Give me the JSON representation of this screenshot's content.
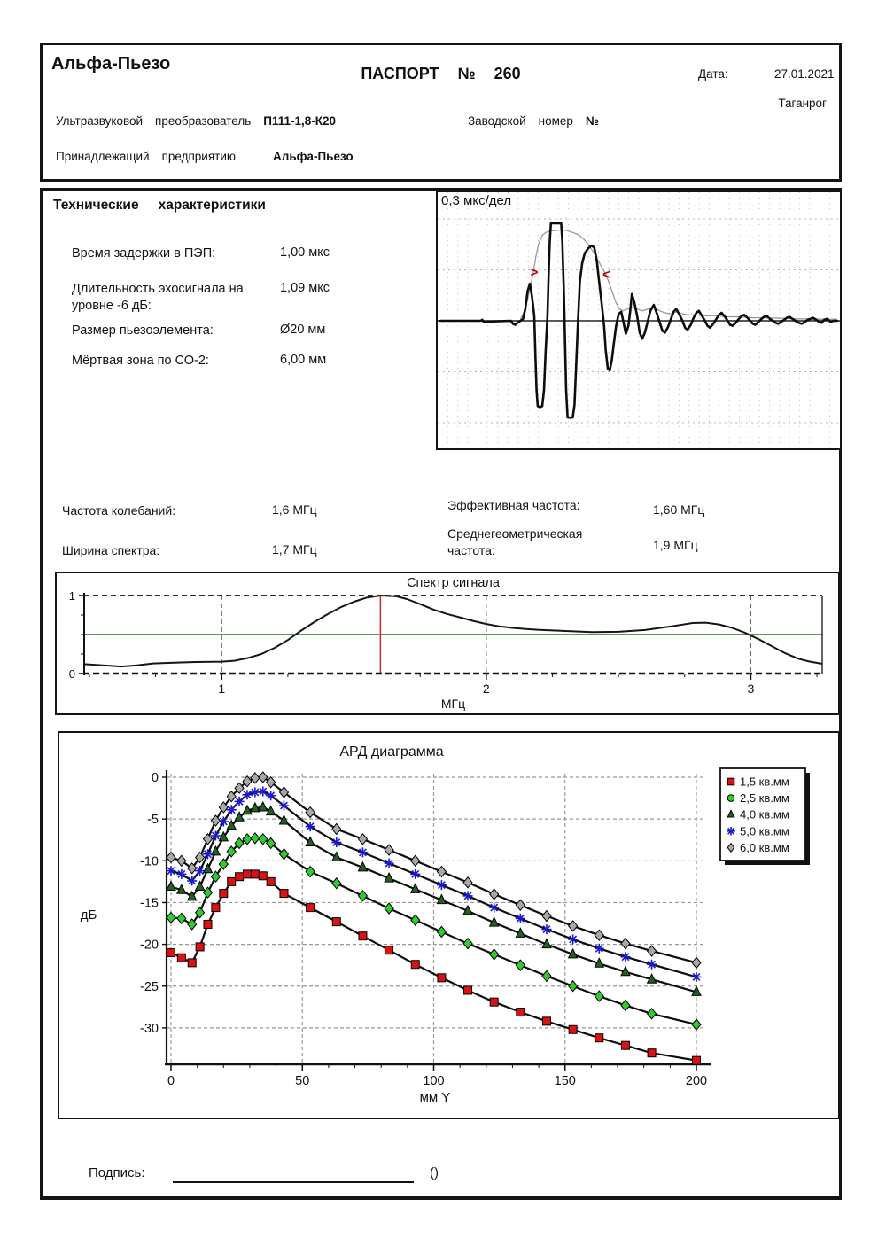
{
  "header": {
    "company": "Альфа-Пьезо",
    "title": "ПАСПОРТ № 260",
    "date_label": "Дата:",
    "date_value": "27.01.2021",
    "city": "Таганрог",
    "line2a": "Ультразвуковой",
    "line2b": "преобразователь",
    "model": "П111-1,8-К20",
    "line2c": "Заводской",
    "line2d": "номер",
    "line2e": "№",
    "line3a": "Принадлежащий",
    "line3b": "предприятию",
    "owner": "Альфа-Пьезо"
  },
  "tech": {
    "title_a": "Технические",
    "title_b": "характеристики",
    "rows": [
      {
        "label": "Время задержки в ПЭП:",
        "value": "1,00 мкс"
      },
      {
        "label": "Длительность эхосигнала на уровне -6 дБ:",
        "value": "1,09 мкс"
      },
      {
        "label": "Размер пьезоэлемента:",
        "value": "Ø20 мм"
      },
      {
        "label": "Мёртвая зона по СО-2:",
        "value": "6,00 мм"
      }
    ]
  },
  "freqs": {
    "left": [
      {
        "label": "Частота колебаний:",
        "value": "1,6 МГц"
      },
      {
        "label": "Ширина спектра:",
        "value": "1,7 МГц"
      }
    ],
    "right": [
      {
        "label": "Эффективная частота:",
        "value": "1,60 МГц"
      },
      {
        "label": "Среднегеометрическая частота:",
        "value": "1,9 МГц"
      }
    ]
  },
  "signature": {
    "label": "Подпись:",
    "paren": "()"
  },
  "colors": {
    "line_black": "#0d0d0d",
    "envelope_gray": "#9a9a9a",
    "grid_gray": "#999999",
    "grid_light": "#bfbfbf",
    "threshold_green": "#1e7a1e",
    "peak_red": "#c03030",
    "marker_arrow_red": "#c00000"
  },
  "chart_data": [
    {
      "type": "line",
      "name": "echo-waveform",
      "scale_label": "0,3 мкс/дел",
      "x_unit": "div",
      "time_span_div": 14,
      "clip_amp": 0.983,
      "markers": [
        {
          "glyph": ">",
          "x_div": 3.36,
          "amp": 0.49
        },
        {
          "glyph": "<",
          "x_div": 5.87,
          "amp": 0.47
        }
      ],
      "points": [
        [
          0.1,
          0
        ],
        [
          1.5,
          0
        ],
        [
          1.55,
          0.01
        ],
        [
          1.6,
          -0.01
        ],
        [
          2.55,
          0
        ],
        [
          2.62,
          -0.03
        ],
        [
          2.7,
          -0.04
        ],
        [
          2.78,
          -0.02
        ],
        [
          2.88,
          0
        ],
        [
          2.97,
          0.02
        ],
        [
          3.05,
          0.12
        ],
        [
          3.13,
          0.3
        ],
        [
          3.21,
          0.374
        ],
        [
          3.28,
          0.25
        ],
        [
          3.36,
          0.05
        ],
        [
          3.4,
          -0.35
        ],
        [
          3.44,
          -0.7
        ],
        [
          3.48,
          -0.86
        ],
        [
          3.56,
          -0.87
        ],
        [
          3.64,
          -0.86
        ],
        [
          3.7,
          -0.7
        ],
        [
          3.76,
          -0.3
        ],
        [
          3.82,
          0.05
        ],
        [
          3.86,
          0.45
        ],
        [
          3.9,
          0.8
        ],
        [
          3.94,
          0.983
        ],
        [
          4.08,
          0.983
        ],
        [
          4.22,
          0.983
        ],
        [
          4.3,
          0.983
        ],
        [
          4.34,
          0.8
        ],
        [
          4.39,
          0.3
        ],
        [
          4.43,
          -0.2
        ],
        [
          4.47,
          -0.7
        ],
        [
          4.52,
          -0.974
        ],
        [
          4.6,
          -0.975
        ],
        [
          4.7,
          -0.974
        ],
        [
          4.76,
          -0.85
        ],
        [
          4.82,
          -0.45
        ],
        [
          4.88,
          -0.02
        ],
        [
          4.95,
          0.4
        ],
        [
          5.03,
          0.58
        ],
        [
          5.12,
          0.68
        ],
        [
          5.24,
          0.73
        ],
        [
          5.35,
          0.757
        ],
        [
          5.45,
          0.74
        ],
        [
          5.54,
          0.6
        ],
        [
          5.61,
          0.42
        ],
        [
          5.7,
          0.2
        ],
        [
          5.79,
          -0.05
        ],
        [
          5.85,
          -0.3
        ],
        [
          5.92,
          -0.48
        ],
        [
          5.99,
          -0.5
        ],
        [
          6.06,
          -0.4
        ],
        [
          6.12,
          -0.25
        ],
        [
          6.21,
          -0.05
        ],
        [
          6.3,
          0.07
        ],
        [
          6.39,
          0.09
        ],
        [
          6.47,
          -0.02
        ],
        [
          6.55,
          -0.13
        ],
        [
          6.64,
          -0.05
        ],
        [
          6.7,
          0.1
        ],
        [
          6.76,
          0.27
        ],
        [
          6.85,
          0.18
        ],
        [
          6.94,
          0.05
        ],
        [
          7.03,
          -0.12
        ],
        [
          7.12,
          -0.18
        ],
        [
          7.21,
          -0.12
        ],
        [
          7.3,
          -0.02
        ],
        [
          7.4,
          0.1
        ],
        [
          7.52,
          0.16
        ],
        [
          7.62,
          0.08
        ],
        [
          7.73,
          -0.02
        ],
        [
          7.82,
          -0.1
        ],
        [
          7.91,
          -0.12
        ],
        [
          8.02,
          -0.06
        ],
        [
          8.12,
          0.02
        ],
        [
          8.21,
          0.09
        ],
        [
          8.3,
          0.12
        ],
        [
          8.42,
          0.06
        ],
        [
          8.52,
          0
        ],
        [
          8.61,
          -0.07
        ],
        [
          8.7,
          -0.09
        ],
        [
          8.81,
          -0.04
        ],
        [
          8.91,
          0.03
        ],
        [
          9.0,
          0.08
        ],
        [
          9.09,
          0.1
        ],
        [
          9.2,
          0.05
        ],
        [
          9.3,
          0
        ],
        [
          9.39,
          -0.05
        ],
        [
          9.48,
          -0.07
        ],
        [
          9.59,
          -0.03
        ],
        [
          9.7,
          0.02
        ],
        [
          9.79,
          0.06
        ],
        [
          9.88,
          0.08
        ],
        [
          10.0,
          0.04
        ],
        [
          10.09,
          0
        ],
        [
          10.18,
          -0.04
        ],
        [
          10.27,
          -0.05
        ],
        [
          10.38,
          -0.02
        ],
        [
          10.48,
          0.02
        ],
        [
          10.58,
          0.05
        ],
        [
          10.67,
          0.06
        ],
        [
          10.78,
          0.03
        ],
        [
          10.88,
          0
        ],
        [
          10.97,
          -0.03
        ],
        [
          11.06,
          -0.04
        ],
        [
          11.17,
          -0.01
        ],
        [
          11.27,
          0.02
        ],
        [
          11.36,
          0.04
        ],
        [
          11.45,
          0.05
        ],
        [
          11.56,
          0.02
        ],
        [
          11.67,
          0
        ],
        [
          11.76,
          -0.02
        ],
        [
          11.85,
          -0.03
        ],
        [
          11.96,
          -0.01
        ],
        [
          12.06,
          0.01
        ],
        [
          12.15,
          0.03
        ],
        [
          12.24,
          0.04
        ],
        [
          12.35,
          0.02
        ],
        [
          12.45,
          0
        ],
        [
          12.56,
          -0.02
        ],
        [
          12.67,
          -0.03
        ],
        [
          12.78,
          -0.01
        ],
        [
          12.88,
          0.01
        ],
        [
          12.97,
          0.02
        ],
        [
          13.06,
          0.03
        ],
        [
          13.18,
          0.01
        ],
        [
          13.27,
          -0.01
        ],
        [
          13.36,
          -0.02
        ],
        [
          13.45,
          0.01
        ],
        [
          13.56,
          0.02
        ],
        [
          13.67,
          -0.01
        ],
        [
          13.78,
          0
        ],
        [
          13.9,
          0
        ]
      ],
      "envelope": [
        [
          2.88,
          0.02
        ],
        [
          3.0,
          0.08
        ],
        [
          3.1,
          0.18
        ],
        [
          3.21,
          0.32
        ],
        [
          3.33,
          0.49
        ],
        [
          3.42,
          0.65
        ],
        [
          3.52,
          0.78
        ],
        [
          3.64,
          0.86
        ],
        [
          3.76,
          0.89
        ],
        [
          3.9,
          0.905
        ],
        [
          4.1,
          0.91
        ],
        [
          4.3,
          0.915
        ],
        [
          4.5,
          0.91
        ],
        [
          4.7,
          0.89
        ],
        [
          4.88,
          0.87
        ],
        [
          5.06,
          0.83
        ],
        [
          5.24,
          0.77
        ],
        [
          5.42,
          0.69
        ],
        [
          5.6,
          0.6
        ],
        [
          5.73,
          0.53
        ],
        [
          5.85,
          0.47
        ],
        [
          5.97,
          0.38
        ],
        [
          6.09,
          0.28
        ],
        [
          6.21,
          0.18
        ],
        [
          6.33,
          0.12
        ],
        [
          6.45,
          0.1
        ],
        [
          6.6,
          0.12
        ],
        [
          6.76,
          0.135
        ],
        [
          6.94,
          0.12
        ],
        [
          7.12,
          0.1
        ],
        [
          7.33,
          0.12
        ],
        [
          7.52,
          0.13
        ],
        [
          7.73,
          0.1
        ],
        [
          7.91,
          0.08
        ],
        [
          8.12,
          0.07
        ],
        [
          8.3,
          0.09
        ],
        [
          8.52,
          0.07
        ],
        [
          8.7,
          0.06
        ],
        [
          9.0,
          0.06
        ],
        [
          9.3,
          0.05
        ],
        [
          9.7,
          0.05
        ],
        [
          10.1,
          0.04
        ],
        [
          10.5,
          0.04
        ],
        [
          11.0,
          0.03
        ],
        [
          11.5,
          0.03
        ],
        [
          12.0,
          0.025
        ],
        [
          12.5,
          0.02
        ],
        [
          13.0,
          0.02
        ],
        [
          13.5,
          0.015
        ],
        [
          13.9,
          0.015
        ]
      ]
    },
    {
      "type": "line",
      "name": "signal-spectrum",
      "title": "Спектр сигнала",
      "xlabel": "МГц",
      "xlim": [
        0.48,
        3.27
      ],
      "ylim": [
        0,
        1
      ],
      "xticks": [
        1,
        2,
        3
      ],
      "minor_xtick_step": 0.25,
      "yticks": [
        0,
        1
      ],
      "minor_yticks": [
        0.25,
        0.5,
        0.75
      ],
      "threshold_level": 0.5,
      "peak_line_x": 1.6,
      "points": [
        [
          0.48,
          0.12
        ],
        [
          0.55,
          0.105
        ],
        [
          0.62,
          0.09
        ],
        [
          0.68,
          0.105
        ],
        [
          0.74,
          0.13
        ],
        [
          0.82,
          0.14
        ],
        [
          0.9,
          0.148
        ],
        [
          1.0,
          0.152
        ],
        [
          1.05,
          0.165
        ],
        [
          1.1,
          0.2
        ],
        [
          1.15,
          0.25
        ],
        [
          1.2,
          0.33
        ],
        [
          1.25,
          0.43
        ],
        [
          1.3,
          0.55
        ],
        [
          1.35,
          0.66
        ],
        [
          1.4,
          0.76
        ],
        [
          1.45,
          0.85
        ],
        [
          1.5,
          0.92
        ],
        [
          1.55,
          0.975
        ],
        [
          1.6,
          1.0
        ],
        [
          1.66,
          0.99
        ],
        [
          1.7,
          0.955
        ],
        [
          1.75,
          0.89
        ],
        [
          1.8,
          0.82
        ],
        [
          1.85,
          0.765
        ],
        [
          1.9,
          0.72
        ],
        [
          1.95,
          0.675
        ],
        [
          2.0,
          0.635
        ],
        [
          2.05,
          0.605
        ],
        [
          2.1,
          0.585
        ],
        [
          2.15,
          0.57
        ],
        [
          2.2,
          0.56
        ],
        [
          2.3,
          0.545
        ],
        [
          2.4,
          0.532
        ],
        [
          2.5,
          0.535
        ],
        [
          2.6,
          0.558
        ],
        [
          2.7,
          0.605
        ],
        [
          2.78,
          0.648
        ],
        [
          2.83,
          0.652
        ],
        [
          2.88,
          0.63
        ],
        [
          2.93,
          0.585
        ],
        [
          2.98,
          0.52
        ],
        [
          3.03,
          0.44
        ],
        [
          3.08,
          0.35
        ],
        [
          3.13,
          0.26
        ],
        [
          3.18,
          0.19
        ],
        [
          3.22,
          0.155
        ],
        [
          3.27,
          0.125
        ]
      ]
    },
    {
      "type": "line",
      "name": "ard-diagram",
      "title": "АРД диаграмма",
      "xlabel": "мм Y",
      "ylabel": "дБ",
      "xlim": [
        -2,
        204
      ],
      "ylim": [
        -34.6,
        0.8
      ],
      "xticks": [
        0,
        50,
        100,
        150,
        200
      ],
      "minor_xtick_step": 10,
      "yticks": [
        0,
        -5,
        -10,
        -15,
        -20,
        -25,
        -30
      ],
      "grid_verticals": [
        0,
        50,
        100,
        150,
        200
      ],
      "x": [
        0,
        4,
        8,
        11,
        14,
        17,
        20,
        23,
        26,
        29,
        32,
        35,
        38,
        43,
        53,
        63,
        73,
        83,
        93,
        103,
        113,
        123,
        133,
        143,
        153,
        163,
        173,
        183,
        200
      ],
      "series": [
        {
          "name": "1,5 кв.мм",
          "marker": "square",
          "legend_marker": "square",
          "color": "#dd1111",
          "values": [
            -21.0,
            -21.6,
            -22.2,
            -20.3,
            -17.6,
            -15.6,
            -13.9,
            -12.5,
            -11.9,
            -11.6,
            -11.6,
            -11.8,
            -12.5,
            -13.9,
            -15.6,
            -17.3,
            -19.0,
            -20.7,
            -22.4,
            -24.0,
            -25.5,
            -26.9,
            -28.1,
            -29.2,
            -30.2,
            -31.2,
            -32.1,
            -33.0,
            -33.9
          ]
        },
        {
          "name": "2,5 кв.мм",
          "marker": "diamond",
          "legend_marker": "circle",
          "color": "#2ecc2e",
          "values": [
            -16.8,
            -16.9,
            -17.6,
            -16.2,
            -13.8,
            -11.9,
            -10.4,
            -8.9,
            -7.9,
            -7.4,
            -7.3,
            -7.4,
            -7.9,
            -9.2,
            -11.3,
            -12.7,
            -14.2,
            -15.7,
            -17.1,
            -18.5,
            -19.9,
            -21.2,
            -22.5,
            -23.8,
            -25.0,
            -26.2,
            -27.3,
            -28.3,
            -29.6
          ]
        },
        {
          "name": "4,0 кв.мм",
          "marker": "triangle",
          "legend_marker": "triangle",
          "color": "#226022",
          "values": [
            -13.1,
            -13.5,
            -14.3,
            -13.1,
            -11.0,
            -8.9,
            -7.2,
            -5.8,
            -4.8,
            -4.0,
            -3.7,
            -3.6,
            -4.1,
            -5.2,
            -7.8,
            -9.6,
            -10.8,
            -12.1,
            -13.4,
            -14.7,
            -16.0,
            -17.4,
            -18.7,
            -20.0,
            -21.2,
            -22.3,
            -23.3,
            -24.2,
            -25.7
          ]
        },
        {
          "name": "5,0 кв.мм",
          "marker": "asterisk",
          "legend_marker": "asterisk",
          "color": "#1a1acc",
          "values": [
            -11.2,
            -11.6,
            -12.4,
            -11.2,
            -9.2,
            -7.0,
            -5.3,
            -3.9,
            -2.9,
            -2.1,
            -1.8,
            -1.7,
            -2.2,
            -3.4,
            -5.9,
            -7.8,
            -9.0,
            -10.3,
            -11.6,
            -12.9,
            -14.2,
            -15.6,
            -16.9,
            -18.2,
            -19.4,
            -20.5,
            -21.5,
            -22.4,
            -23.9
          ]
        },
        {
          "name": "6,0 кв.мм",
          "marker": "diamond",
          "legend_marker": "diamond",
          "color": "#a8a8a8",
          "values": [
            -9.6,
            -10.0,
            -10.9,
            -9.6,
            -7.4,
            -5.2,
            -3.6,
            -2.3,
            -1.3,
            -0.5,
            -0.1,
            0.0,
            -0.6,
            -1.8,
            -4.2,
            -6.2,
            -7.4,
            -8.7,
            -10.0,
            -11.3,
            -12.6,
            -14.0,
            -15.3,
            -16.6,
            -17.8,
            -18.9,
            -19.9,
            -20.8,
            -22.2
          ]
        }
      ]
    }
  ]
}
